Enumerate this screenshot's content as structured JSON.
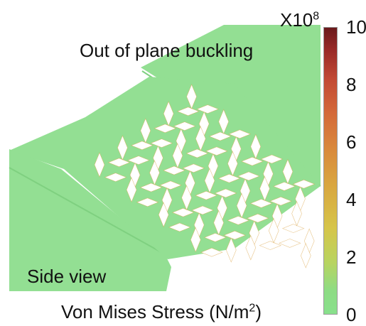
{
  "figure": {
    "title_label": "Out of plane buckling",
    "side_label": "Side view",
    "caption": {
      "text": "Von Mises Stress (N/m",
      "sup": "2",
      "close": ")"
    }
  },
  "colorbar": {
    "multiplier_base": "X10",
    "multiplier_exp": "8",
    "ticks": [
      "10",
      "8",
      "6",
      "4",
      "2",
      "0"
    ],
    "range": [
      0,
      10
    ],
    "colors": {
      "low": "#88e08c",
      "mid": "#d9a640",
      "high": "#6a1a1c"
    }
  },
  "colors": {
    "sheet": "#93df93",
    "sheet_edge": "#7fd080",
    "stress_hotspot": "#d8a040"
  }
}
